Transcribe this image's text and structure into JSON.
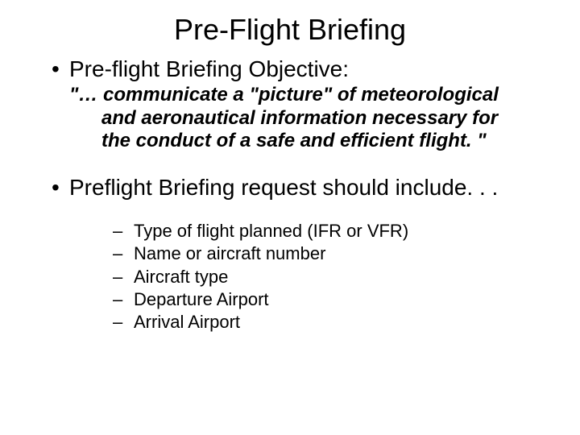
{
  "slide": {
    "title": "Pre-Flight Briefing",
    "objective_label": "Pre-flight Briefing Objective:",
    "objective_quote": "\"… communicate a \"picture\" of meteorological and aeronautical information necessary for the conduct of a safe and efficient flight. \"",
    "request_label": "Preflight Briefing request should include. . .",
    "request_items": [
      "Type of flight planned (IFR or VFR)",
      "Name or aircraft number",
      "Aircraft type",
      "Departure Airport",
      "Arrival Airport"
    ]
  },
  "style": {
    "background_color": "#ffffff",
    "text_color": "#000000",
    "font_family": "Arial",
    "title_fontsize": 36,
    "bullet_l1_fontsize": 28,
    "quote_fontsize": 24,
    "sub_fontsize": 22,
    "quote_bold": true,
    "quote_italic": true
  }
}
